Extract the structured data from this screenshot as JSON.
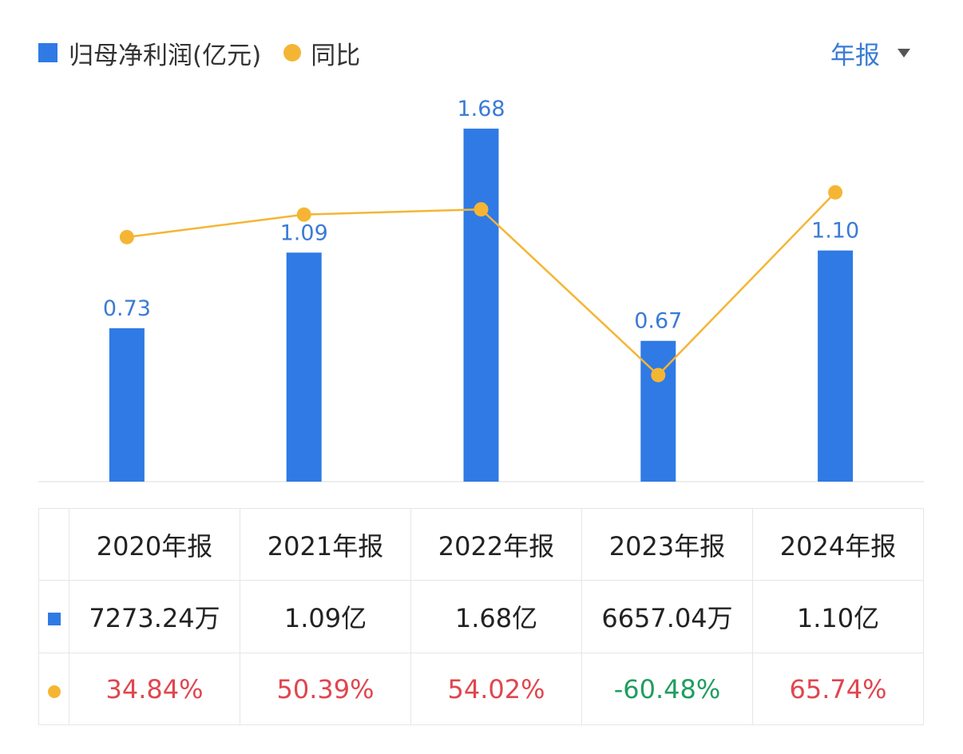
{
  "legend": {
    "bar_label": "归母净利润(亿元)",
    "line_label": "同比"
  },
  "period_selector": {
    "label": "年报"
  },
  "colors": {
    "bar": "#2f7ae5",
    "line": "#f5b534",
    "bar_label": "#3a7bd5",
    "positive": "#e0464e",
    "negative": "#1f9e5f"
  },
  "chart_data": {
    "type": "bar",
    "categories": [
      "2020年报",
      "2021年报",
      "2022年报",
      "2023年报",
      "2024年报"
    ],
    "series": [
      {
        "name": "归母净利润(亿元)",
        "type": "bar",
        "values": [
          0.73,
          1.09,
          1.68,
          0.67,
          1.1
        ],
        "labels": [
          "0.73",
          "1.09",
          "1.68",
          "0.67",
          "1.10"
        ]
      },
      {
        "name": "同比",
        "type": "line",
        "values": [
          34.84,
          50.39,
          54.02,
          -60.48,
          65.74
        ]
      }
    ],
    "ylim": [
      0,
      1.76
    ],
    "grid": false
  },
  "table": {
    "headers": [
      "2020年报",
      "2021年报",
      "2022年报",
      "2023年报",
      "2024年报"
    ],
    "profit": [
      "7273.24万",
      "1.09亿",
      "1.68亿",
      "6657.04万",
      "1.10亿"
    ],
    "yoy": [
      "34.84%",
      "50.39%",
      "54.02%",
      "-60.48%",
      "65.74%"
    ]
  }
}
